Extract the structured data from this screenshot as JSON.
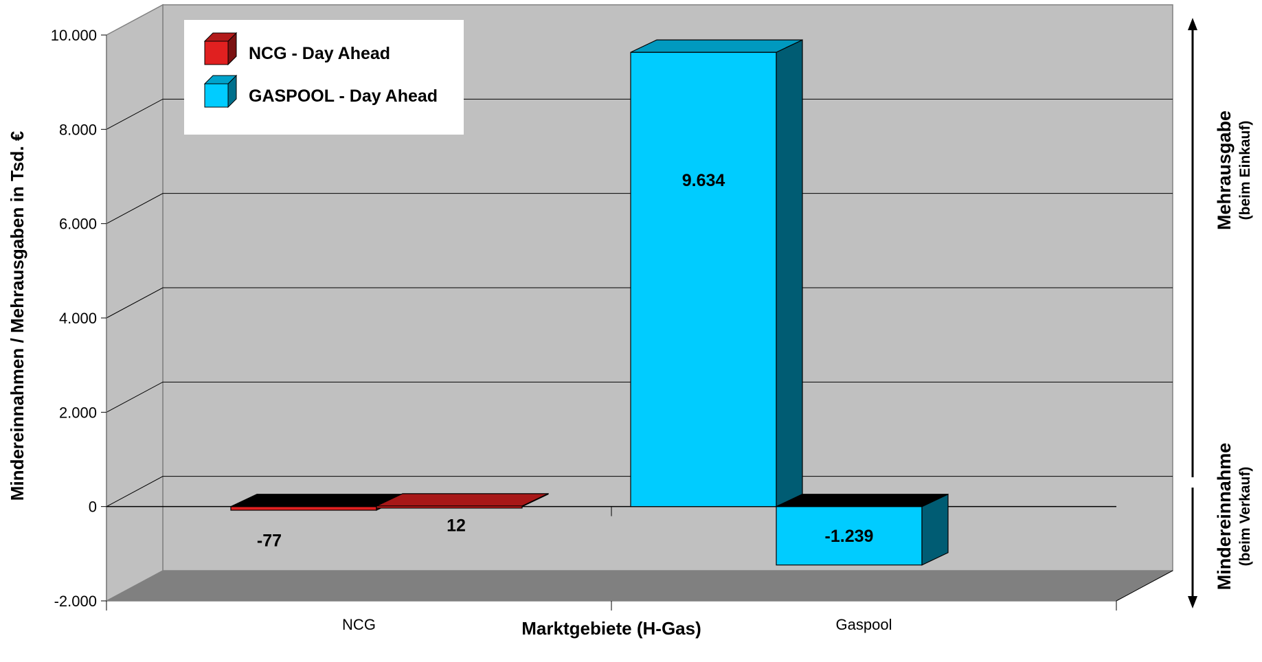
{
  "chart_data": {
    "type": "bar",
    "categories": [
      "NCG",
      "Gaspool"
    ],
    "series": [
      {
        "name": "NCG - Day Ahead",
        "color": "#e02020",
        "values": [
          [
            -77,
            12
          ],
          null
        ],
        "data_labels": [
          [
            "-77",
            "12"
          ],
          null
        ]
      },
      {
        "name": "GASPOOL - Day Ahead",
        "color": "#00ccff",
        "values": [
          null,
          [
            9634,
            -1239
          ]
        ],
        "data_labels": [
          null,
          [
            "9.634",
            "-1.239"
          ]
        ]
      }
    ],
    "ylim": [
      -2000,
      10000
    ],
    "yticks": [
      {
        "value": 10000,
        "label": "10.000"
      },
      {
        "value": 8000,
        "label": "8.000"
      },
      {
        "value": 6000,
        "label": "6.000"
      },
      {
        "value": 4000,
        "label": "4.000"
      },
      {
        "value": 2000,
        "label": "2.000"
      },
      {
        "value": 0,
        "label": "0"
      },
      {
        "value": -2000,
        "label": "-2.000"
      }
    ],
    "xlabel": "Marktgebiete (H-Gas)",
    "ylabel": "Mindereinnahmen / Mehrausgaben in Tsd. €",
    "legend": {
      "placement": "top-left"
    },
    "grid": true,
    "three_d": true,
    "right_annotation": {
      "upper_main": "Mehrausgabe",
      "upper_sub": "(beim Einkauf)",
      "lower_main": "Mindereinnahme",
      "lower_sub": "(beim Verkauf)"
    }
  }
}
